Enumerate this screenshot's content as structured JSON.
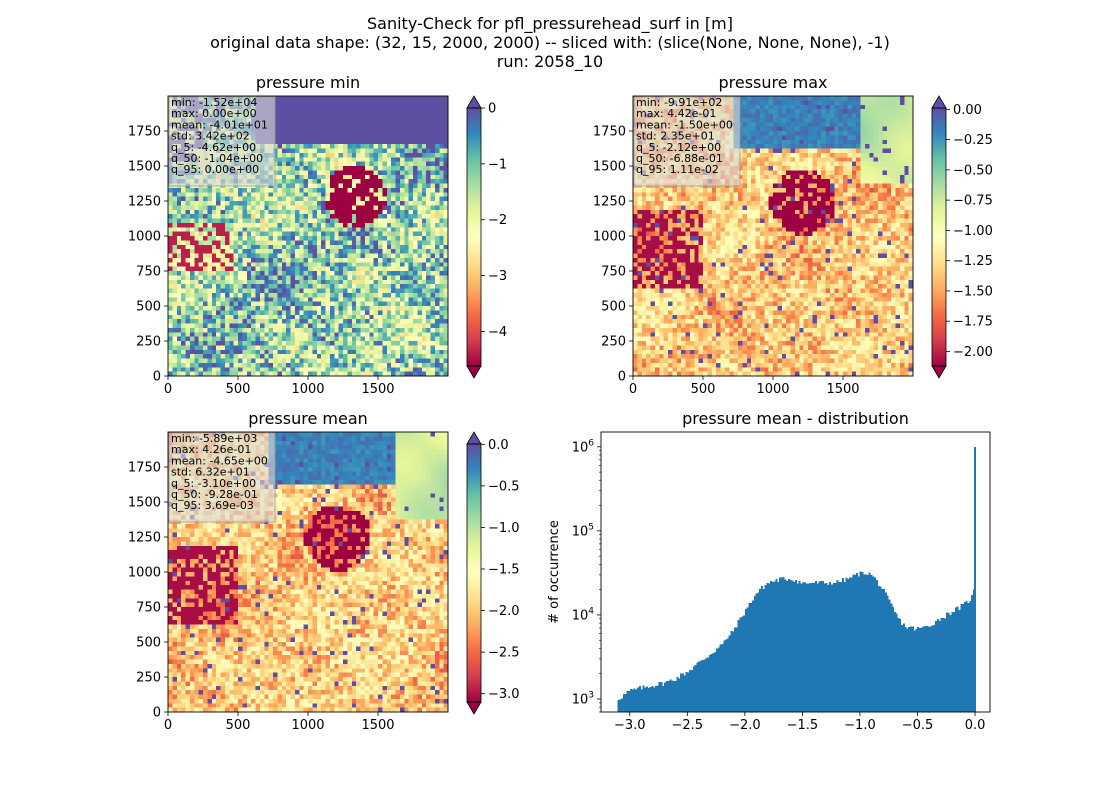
{
  "figure": {
    "title_lines": [
      "Sanity-Check for pfl_pressurehead_surf in [m]",
      "original data shape: (32, 15, 2000, 2000) -- sliced with: (slice(None, None, None), -1)",
      "run: 2058_10"
    ]
  },
  "colormap": {
    "name": "Spectral",
    "stops": [
      "#9e0142",
      "#d53e4f",
      "#f46d43",
      "#fdae61",
      "#fee08b",
      "#ffffbf",
      "#e6f598",
      "#abdda4",
      "#66c2a5",
      "#3288bd",
      "#5e4fa2"
    ]
  },
  "chart_data": [
    {
      "type": "heatmap",
      "title": "pressure min",
      "x_ticks": [
        "0",
        "500",
        "1000",
        "1500"
      ],
      "y_ticks": [
        "0",
        "250",
        "500",
        "750",
        "1000",
        "1250",
        "1500",
        "1750"
      ],
      "x_range": [
        0,
        2000
      ],
      "y_range": [
        0,
        2000
      ],
      "stats": [
        "min: -1.52e+04",
        "max: 0.00e+00",
        "mean: -4.01e+01",
        "std: 3.42e+02",
        "q_5: -4.62e+00",
        "q_50: -1.04e+00",
        "q_95: 0.00e+00"
      ],
      "colorbar": {
        "range": [
          -4.62,
          0
        ],
        "ticks": [
          0,
          -1,
          -2,
          -3,
          -4
        ],
        "tick_labels": [
          "0",
          "−1",
          "−2",
          "−3",
          "−4"
        ],
        "extend": "both"
      }
    },
    {
      "type": "heatmap",
      "title": "pressure max",
      "x_ticks": [
        "0",
        "500",
        "1000",
        "1500"
      ],
      "y_ticks": [
        "0",
        "250",
        "500",
        "750",
        "1000",
        "1250",
        "1500",
        "1750"
      ],
      "x_range": [
        0,
        2000
      ],
      "y_range": [
        0,
        2000
      ],
      "stats": [
        "min: -9.91e+02",
        "max: 4.42e-01",
        "mean: -1.50e+00",
        "std: 2.35e+01",
        "q_5: -2.12e+00",
        "q_50: -6.88e-01",
        "q_95: 1.11e-02"
      ],
      "colorbar": {
        "range": [
          -2.12,
          0.011
        ],
        "ticks": [
          0,
          -0.25,
          -0.5,
          -0.75,
          -1.0,
          -1.25,
          -1.5,
          -1.75,
          -2.0
        ],
        "tick_labels": [
          "0.00",
          "−0.25",
          "−0.50",
          "−0.75",
          "−1.00",
          "−1.25",
          "−1.50",
          "−1.75",
          "−2.00"
        ],
        "extend": "both"
      }
    },
    {
      "type": "heatmap",
      "title": "pressure mean",
      "x_ticks": [
        "0",
        "500",
        "1000",
        "1500"
      ],
      "y_ticks": [
        "0",
        "250",
        "500",
        "750",
        "1000",
        "1250",
        "1500",
        "1750"
      ],
      "x_range": [
        0,
        2000
      ],
      "y_range": [
        0,
        2000
      ],
      "stats": [
        "min: -5.89e+03",
        "max: 4.26e-01",
        "mean: -4.65e+00",
        "std: 6.32e+01",
        "q_5: -3.10e+00",
        "q_50: -9.28e-01",
        "q_95: 3.69e-03"
      ],
      "colorbar": {
        "range": [
          -3.1,
          0.0037
        ],
        "ticks": [
          0,
          -0.5,
          -1.0,
          -1.5,
          -2.0,
          -2.5,
          -3.0
        ],
        "tick_labels": [
          "0.0",
          "−0.5",
          "−1.0",
          "−1.5",
          "−2.0",
          "−2.5",
          "−3.0"
        ],
        "extend": "both"
      }
    },
    {
      "type": "bar",
      "title": "pressure mean - distribution",
      "ylabel": "# of occurrence",
      "xlim": [
        -3.25,
        0.13
      ],
      "ylim": [
        700,
        1500000
      ],
      "y_scale": "log",
      "x_ticks": [
        -3.0,
        -2.5,
        -2.0,
        -1.5,
        -1.0,
        -0.5,
        0.0
      ],
      "x_tick_labels": [
        "−3.0",
        "−2.5",
        "−2.0",
        "−1.5",
        "−1.0",
        "−0.5",
        "0.0"
      ],
      "y_ticks": [
        1000,
        10000,
        100000,
        1000000
      ],
      "y_tick_labels": [
        "10^3",
        "10^4",
        "10^5",
        "10^6"
      ],
      "color": "#1f77b4",
      "bin_width": 0.0156,
      "bin_centers_range": [
        -3.1,
        0.0
      ],
      "counts_profile": [
        [
          -3.1,
          1000
        ],
        [
          -3.0,
          1250
        ],
        [
          -2.9,
          1350
        ],
        [
          -2.8,
          1450
        ],
        [
          -2.7,
          1550
        ],
        [
          -2.6,
          1750
        ],
        [
          -2.5,
          2100
        ],
        [
          -2.4,
          2700
        ],
        [
          -2.3,
          3400
        ],
        [
          -2.2,
          4400
        ],
        [
          -2.1,
          6500
        ],
        [
          -2.0,
          11000
        ],
        [
          -1.9,
          18000
        ],
        [
          -1.8,
          24000
        ],
        [
          -1.7,
          26500
        ],
        [
          -1.6,
          27000
        ],
        [
          -1.5,
          24000
        ],
        [
          -1.4,
          24000
        ],
        [
          -1.3,
          24000
        ],
        [
          -1.2,
          24500
        ],
        [
          -1.1,
          27000
        ],
        [
          -1.0,
          31000
        ],
        [
          -0.95,
          32000
        ],
        [
          -0.9,
          30000
        ],
        [
          -0.85,
          25000
        ],
        [
          -0.8,
          20000
        ],
        [
          -0.75,
          15000
        ],
        [
          -0.7,
          11000
        ],
        [
          -0.65,
          8500
        ],
        [
          -0.6,
          7200
        ],
        [
          -0.5,
          6800
        ],
        [
          -0.4,
          7400
        ],
        [
          -0.3,
          9000
        ],
        [
          -0.2,
          11000
        ],
        [
          -0.1,
          13000
        ],
        [
          -0.05,
          15000
        ],
        [
          -0.02,
          17000
        ],
        [
          -0.005,
          21000
        ],
        [
          0.0,
          1000000
        ]
      ]
    }
  ]
}
